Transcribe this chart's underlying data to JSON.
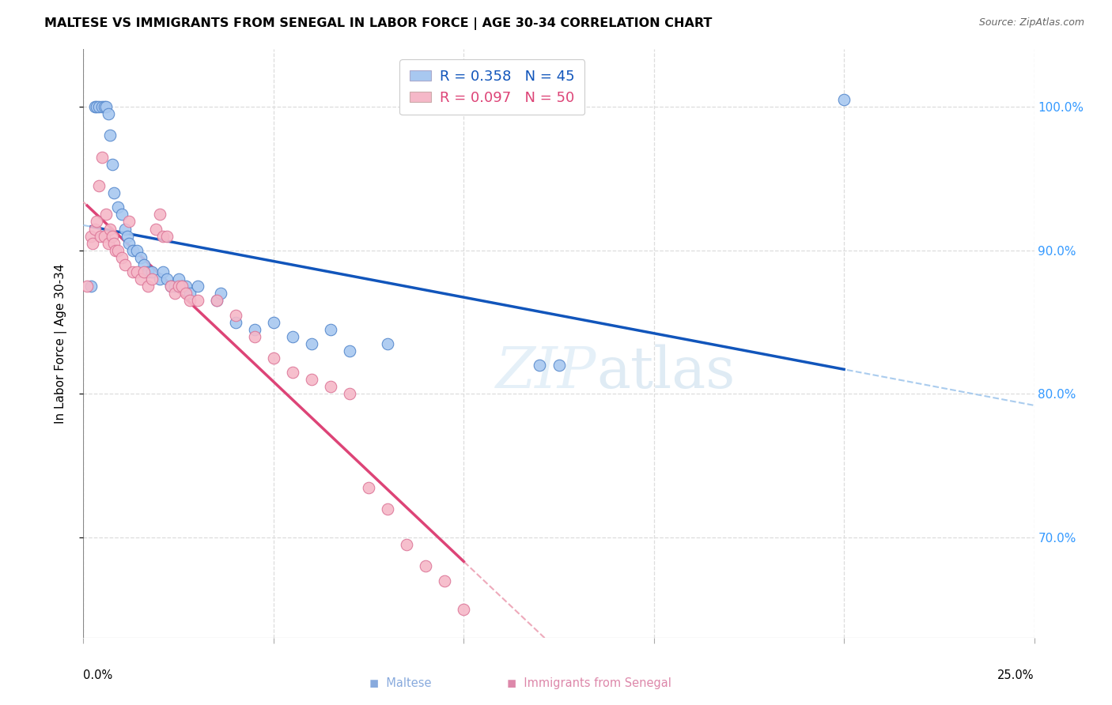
{
  "title": "MALTESE VS IMMIGRANTS FROM SENEGAL IN LABOR FORCE | AGE 30-34 CORRELATION CHART",
  "source": "Source: ZipAtlas.com",
  "ylabel": "In Labor Force | Age 30-34",
  "watermark_zip": "ZIP",
  "watermark_atlas": "atlas",
  "legend_blue_label": "R = 0.358   N = 45",
  "legend_pink_label": "R = 0.097   N = 50",
  "legend_blue_color": "#a8c8f0",
  "legend_pink_color": "#f5b8c8",
  "dot_blue_color": "#a8c8f0",
  "dot_pink_color": "#f5b8c8",
  "dot_edge_blue": "#5588cc",
  "dot_edge_pink": "#dd7799",
  "trend_blue_color": "#1155bb",
  "trend_pink_color": "#dd4477",
  "trend_dashed_blue_color": "#aaccee",
  "trend_dashed_pink_color": "#eeaabb",
  "grid_color": "#dddddd",
  "ytick_color": "#3399ff",
  "xlim": [
    0.0,
    25.0
  ],
  "ylim": [
    63.0,
    104.0
  ],
  "yticks": [
    70.0,
    80.0,
    90.0,
    100.0
  ],
  "ytick_labels": [
    "70.0%",
    "80.0%",
    "90.0%",
    "100.0%"
  ],
  "xticks": [
    0.0,
    5.0,
    10.0,
    15.0,
    20.0,
    25.0
  ],
  "blue_x": [
    0.2,
    0.3,
    0.35,
    0.4,
    0.5,
    0.55,
    0.6,
    0.65,
    0.7,
    0.75,
    0.8,
    0.9,
    1.0,
    1.1,
    1.15,
    1.2,
    1.3,
    1.4,
    1.5,
    1.6,
    1.7,
    1.8,
    2.0,
    2.1,
    2.2,
    2.3,
    2.4,
    2.5,
    2.6,
    2.7,
    2.8,
    3.0,
    3.5,
    3.6,
    4.0,
    4.5,
    5.0,
    5.5,
    6.0,
    6.5,
    7.0,
    8.0,
    12.0,
    12.5,
    20.0
  ],
  "blue_y": [
    87.5,
    100.0,
    100.0,
    100.0,
    100.0,
    100.0,
    100.0,
    99.5,
    98.0,
    96.0,
    94.0,
    93.0,
    92.5,
    91.5,
    91.0,
    90.5,
    90.0,
    90.0,
    89.5,
    89.0,
    88.5,
    88.5,
    88.0,
    88.5,
    88.0,
    87.5,
    87.5,
    88.0,
    87.5,
    87.5,
    87.0,
    87.5,
    86.5,
    87.0,
    85.0,
    84.5,
    85.0,
    84.0,
    83.5,
    84.5,
    83.0,
    83.5,
    82.0,
    82.0,
    100.5
  ],
  "pink_x": [
    0.1,
    0.2,
    0.25,
    0.3,
    0.35,
    0.4,
    0.45,
    0.5,
    0.55,
    0.6,
    0.65,
    0.7,
    0.75,
    0.8,
    0.85,
    0.9,
    1.0,
    1.1,
    1.2,
    1.3,
    1.4,
    1.5,
    1.6,
    1.7,
    1.8,
    1.9,
    2.0,
    2.1,
    2.2,
    2.3,
    2.4,
    2.5,
    2.6,
    2.7,
    2.8,
    3.0,
    3.5,
    4.0,
    4.5,
    5.0,
    5.5,
    6.0,
    6.5,
    7.0,
    7.5,
    8.0,
    8.5,
    9.0,
    9.5,
    10.0
  ],
  "pink_y": [
    87.5,
    91.0,
    90.5,
    91.5,
    92.0,
    94.5,
    91.0,
    96.5,
    91.0,
    92.5,
    90.5,
    91.5,
    91.0,
    90.5,
    90.0,
    90.0,
    89.5,
    89.0,
    92.0,
    88.5,
    88.5,
    88.0,
    88.5,
    87.5,
    88.0,
    91.5,
    92.5,
    91.0,
    91.0,
    87.5,
    87.0,
    87.5,
    87.5,
    87.0,
    86.5,
    86.5,
    86.5,
    85.5,
    84.0,
    82.5,
    81.5,
    81.0,
    80.5,
    80.0,
    73.5,
    72.0,
    69.5,
    68.0,
    67.0,
    65.0
  ]
}
